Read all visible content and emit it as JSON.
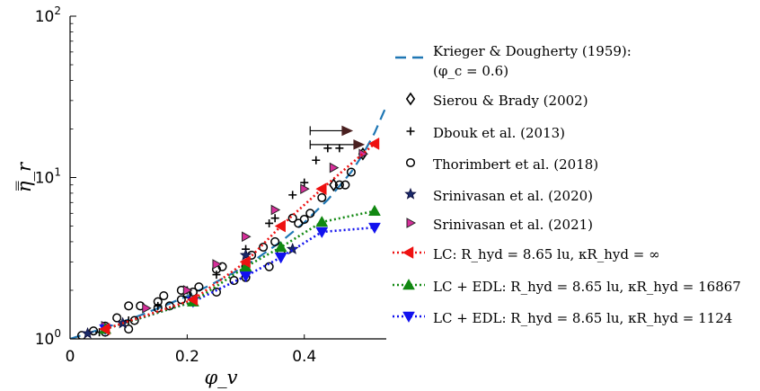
{
  "chart_data": {
    "type": "scatter",
    "title": "",
    "xlabel": "φ_v",
    "ylabel": "η̿_r",
    "xscale": "linear",
    "yscale": "log",
    "xlim": [
      0,
      0.54
    ],
    "ylim": [
      1,
      100
    ],
    "grid": false,
    "legend_position": "right, outside plot",
    "x_ticks": [
      0,
      0.2,
      0.4
    ],
    "x_tick_labels": [
      "0",
      "0.2",
      "0.4"
    ],
    "y_ticks": [
      1,
      10,
      100
    ],
    "y_tick_labels": [
      "10^0",
      "10^1",
      "10^2"
    ],
    "colors": {
      "krieger": "#1f77b4",
      "srinivasan2021": "#d62f9a",
      "lc": "#ee1111",
      "edl16867": "#118811",
      "edl1124": "#1111ee",
      "dbouk_arrow": "#4a2020"
    },
    "series": [
      {
        "id": "krieger",
        "name": "Krieger & Dougherty (1959): (φ_c = 0.6)",
        "legend_lines": [
          "Krieger & Dougherty (1959):",
          "(φ_c = 0.6)"
        ],
        "style": "dashed-line",
        "x": [
          0.0,
          0.04,
          0.08,
          0.12,
          0.16,
          0.2,
          0.24,
          0.28,
          0.32,
          0.36,
          0.4,
          0.44,
          0.48,
          0.5,
          0.52,
          0.54
        ],
        "y": [
          1.0,
          1.11,
          1.24,
          1.4,
          1.6,
          1.84,
          2.16,
          2.58,
          3.17,
          4.0,
          5.26,
          7.27,
          10.8,
          13.9,
          18.9,
          27.7
        ]
      },
      {
        "id": "sierou",
        "name": "Sierou & Brady (2002)",
        "legend_lines": [
          "Sierou & Brady (2002)"
        ],
        "style": "marker-diamond",
        "x": [
          0.45,
          0.5
        ],
        "y": [
          9.0,
          14.0
        ]
      },
      {
        "id": "dbouk",
        "name": "Dbouk et al. (2013)",
        "legend_lines": [
          "Dbouk et al. (2013)"
        ],
        "style": "marker-plus",
        "x": [
          0.05,
          0.1,
          0.15,
          0.2,
          0.25,
          0.3,
          0.34,
          0.35,
          0.38,
          0.4,
          0.42,
          0.44,
          0.46
        ],
        "y": [
          1.1,
          1.3,
          1.6,
          2.0,
          2.5,
          3.6,
          5.2,
          5.6,
          7.8,
          9.3,
          12.8,
          15.2,
          15.2
        ],
        "arrows": [
          {
            "x_from": 0.41,
            "x_to": 0.48,
            "y": 19.5
          },
          {
            "x_from": 0.41,
            "x_to": 0.5,
            "y": 16.0
          }
        ]
      },
      {
        "id": "thorimbert",
        "name": "Thorimbert et al. (2018)",
        "legend_lines": [
          "Thorimbert et al. (2018)"
        ],
        "style": "marker-circle",
        "x": [
          0.02,
          0.04,
          0.06,
          0.06,
          0.08,
          0.1,
          0.1,
          0.11,
          0.12,
          0.15,
          0.15,
          0.16,
          0.17,
          0.19,
          0.19,
          0.2,
          0.21,
          0.22,
          0.25,
          0.25,
          0.26,
          0.28,
          0.3,
          0.3,
          0.31,
          0.33,
          0.34,
          0.35,
          0.36,
          0.38,
          0.39,
          0.4,
          0.41,
          0.43,
          0.46,
          0.47,
          0.48
        ],
        "y": [
          1.05,
          1.12,
          1.1,
          1.2,
          1.35,
          1.15,
          1.6,
          1.3,
          1.6,
          1.55,
          1.7,
          1.85,
          1.6,
          1.75,
          2.0,
          1.9,
          1.95,
          2.1,
          2.7,
          1.95,
          2.8,
          2.3,
          2.8,
          2.4,
          3.3,
          3.7,
          2.8,
          4.0,
          3.5,
          5.6,
          5.2,
          5.5,
          6.0,
          7.5,
          9.0,
          9.0,
          10.8
        ]
      },
      {
        "id": "srinivasan2020",
        "name": "Srinivasan et al. (2020)",
        "legend_lines": [
          "Srinivasan et al. (2020)"
        ],
        "style": "marker-star",
        "x": [
          0.03,
          0.09,
          0.3,
          0.38
        ],
        "y": [
          1.08,
          1.25,
          3.3,
          3.6
        ]
      },
      {
        "id": "srinivasan2021",
        "name": "Srinivasan et al. (2021)",
        "legend_lines": [
          "Srinivasan et al. (2021)"
        ],
        "style": "marker-triangle-right",
        "x": [
          0.06,
          0.13,
          0.2,
          0.25,
          0.3,
          0.35,
          0.4,
          0.45,
          0.5
        ],
        "y": [
          1.2,
          1.55,
          2.0,
          2.9,
          4.3,
          6.3,
          8.5,
          11.5,
          14.0
        ]
      },
      {
        "id": "lc",
        "name": "LC: R_hyd = 8.65 lu, κR_hyd = ∞",
        "legend_lines": [
          "LC: R_hyd = 8.65 lu, κR_hyd = ∞"
        ],
        "style": "dotted-line-triangle-left",
        "x": [
          0.06,
          0.21,
          0.3,
          0.36,
          0.43,
          0.52
        ],
        "y": [
          1.15,
          1.75,
          3.0,
          5.0,
          8.5,
          16.2
        ]
      },
      {
        "id": "edl16867",
        "name": "LC + EDL: R_hyd = 8.65 lu, κR_hyd = 16867",
        "legend_lines": [
          "LC + EDL: R_hyd = 8.65 lu, κR_hyd = 16867"
        ],
        "style": "dotted-line-triangle-up",
        "x": [
          0.06,
          0.21,
          0.3,
          0.36,
          0.43,
          0.52
        ],
        "y": [
          1.15,
          1.7,
          2.8,
          3.7,
          5.3,
          6.2
        ]
      },
      {
        "id": "edl1124",
        "name": "LC + EDL: R_hyd = 8.65 lu, κR_hyd = 1124",
        "legend_lines": [
          "LC + EDL: R_hyd = 8.65 lu, κR_hyd = 1124"
        ],
        "style": "dotted-line-triangle-down",
        "x": [
          0.06,
          0.21,
          0.3,
          0.36,
          0.43,
          0.52
        ],
        "y": [
          1.15,
          1.7,
          2.45,
          3.2,
          4.6,
          4.9
        ]
      }
    ]
  }
}
